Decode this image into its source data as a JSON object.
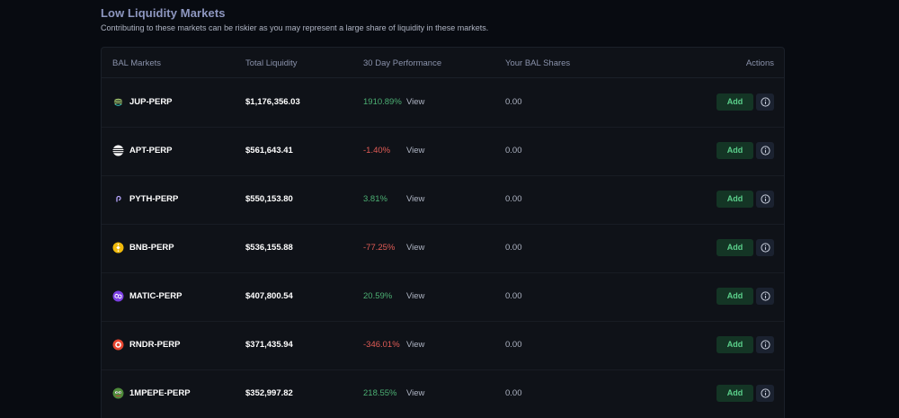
{
  "header": {
    "title": "Low Liquidity Markets",
    "subtitle": "Contributing to these markets can be riskier as you may represent a large share of liquidity in these markets."
  },
  "table": {
    "columns": [
      "BAL Markets",
      "Total Liquidity",
      "30 Day Performance",
      "Your BAL Shares",
      "Actions"
    ],
    "view_label": "View",
    "add_label": "Add",
    "rows": [
      {
        "market": "JUP-PERP",
        "icon": "jupiter-icon",
        "liquidity": "$1,176,356.03",
        "performance": "1910.89%",
        "trend": "positive",
        "shares": "0.00"
      },
      {
        "market": "APT-PERP",
        "icon": "aptos-icon",
        "liquidity": "$561,643.41",
        "performance": "-1.40%",
        "trend": "negative",
        "shares": "0.00"
      },
      {
        "market": "PYTH-PERP",
        "icon": "pyth-icon",
        "liquidity": "$550,153.80",
        "performance": "3.81%",
        "trend": "positive",
        "shares": "0.00"
      },
      {
        "market": "BNB-PERP",
        "icon": "bnb-icon",
        "liquidity": "$536,155.88",
        "performance": "-77.25%",
        "trend": "negative",
        "shares": "0.00"
      },
      {
        "market": "MATIC-PERP",
        "icon": "polygon-icon",
        "liquidity": "$407,800.54",
        "performance": "20.59%",
        "trend": "positive",
        "shares": "0.00"
      },
      {
        "market": "RNDR-PERP",
        "icon": "render-icon",
        "liquidity": "$371,435.94",
        "performance": "-346.01%",
        "trend": "negative",
        "shares": "0.00"
      },
      {
        "market": "1MPEPE-PERP",
        "icon": "pepe-icon",
        "liquidity": "$352,997.82",
        "performance": "218.55%",
        "trend": "positive",
        "shares": "0.00"
      }
    ]
  },
  "colors": {
    "positive": "#4caf73",
    "negative": "#e25c56",
    "add_button_bg": "#143525",
    "add_button_text": "#5bd08b",
    "background": "#080b11"
  }
}
